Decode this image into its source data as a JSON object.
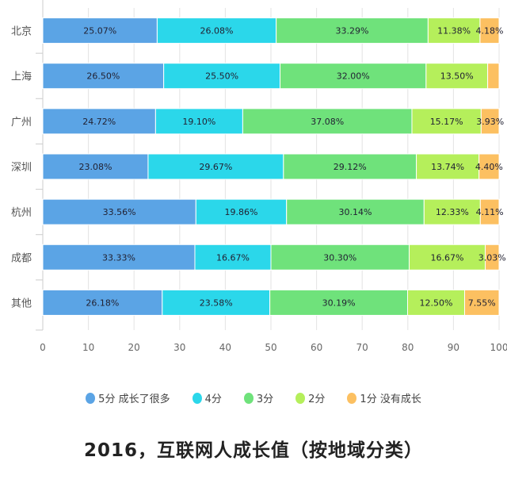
{
  "chart_data": {
    "type": "bar",
    "orientation": "horizontal",
    "stacked": true,
    "title": "2016，互联网人成长值（按地域分类）",
    "categories": [
      "北京",
      "上海",
      "广州",
      "深圳",
      "杭州",
      "成都",
      "其他"
    ],
    "xlim": [
      0,
      100
    ],
    "xticks": [
      "0",
      "10",
      "20",
      "30",
      "40",
      "50",
      "60",
      "70",
      "80",
      "90",
      "100"
    ],
    "grid": true,
    "legend_position": "bottom",
    "series": [
      {
        "name": "5分 成长了很多",
        "color": "#5ba4e5",
        "values": [
          25.07,
          26.5,
          24.72,
          23.08,
          33.56,
          33.33,
          26.18
        ]
      },
      {
        "name": "4分",
        "color": "#2bd7ea",
        "values": [
          26.08,
          25.5,
          19.1,
          29.67,
          19.86,
          16.67,
          23.58
        ]
      },
      {
        "name": "3分",
        "color": "#6fe27b",
        "values": [
          33.29,
          32.0,
          37.08,
          29.12,
          30.14,
          30.3,
          30.19
        ]
      },
      {
        "name": "2分",
        "color": "#b5ef5b",
        "values": [
          11.38,
          13.5,
          15.17,
          13.74,
          12.33,
          16.67,
          12.5
        ]
      },
      {
        "name": "1分 没有成长",
        "color": "#fcc061",
        "values": [
          4.18,
          2.5,
          3.93,
          4.4,
          4.11,
          3.03,
          7.55
        ]
      }
    ],
    "data_labels": [
      [
        "25.07%",
        "26.08%",
        "33.29%",
        "11.38%",
        "4.18%"
      ],
      [
        "26.50%",
        "25.50%",
        "32.00%",
        "13.50%",
        ""
      ],
      [
        "24.72%",
        "19.10%",
        "37.08%",
        "15.17%",
        "3.93%"
      ],
      [
        "23.08%",
        "29.67%",
        "29.12%",
        "13.74%",
        "4.40%"
      ],
      [
        "33.56%",
        "19.86%",
        "30.14%",
        "12.33%",
        "4.11%"
      ],
      [
        "33.33%",
        "16.67%",
        "30.30%",
        "16.67%",
        "3.03%"
      ],
      [
        "26.18%",
        "23.58%",
        "30.19%",
        "12.50%",
        "7.55%"
      ]
    ]
  }
}
